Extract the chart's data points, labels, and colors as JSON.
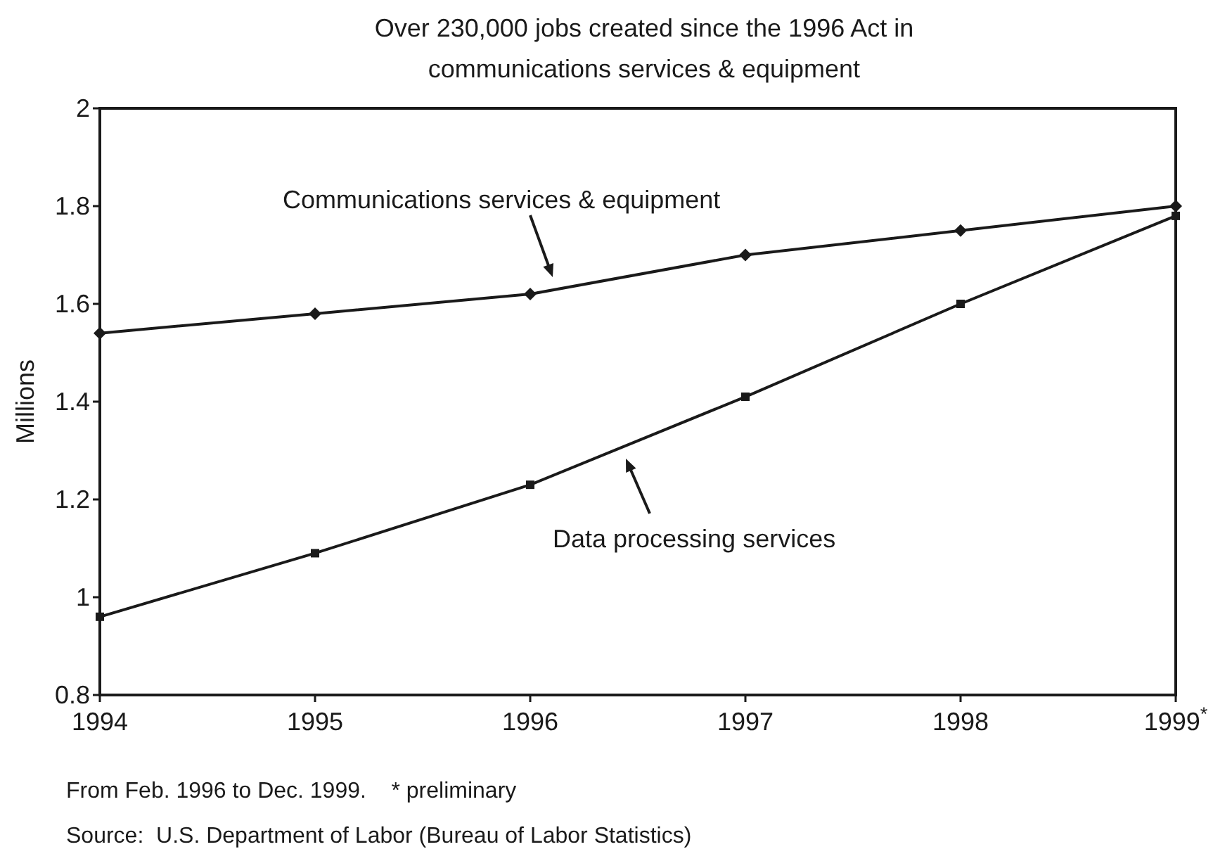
{
  "chart_data": {
    "type": "line",
    "title": "Over 230,000 jobs created since the 1996 Act in communications services & equipment",
    "ylabel": "Millions",
    "x": [
      1994,
      1995,
      1996,
      1997,
      1998,
      1999
    ],
    "series": [
      {
        "name": "Communications services & equipment",
        "color": "#1a1a1a",
        "marker": "diamond",
        "values": [
          1.54,
          1.58,
          1.62,
          1.7,
          1.75,
          1.8
        ]
      },
      {
        "name": "Data processing services",
        "color": "#1a1a1a",
        "marker": "square",
        "values": [
          0.96,
          1.09,
          1.23,
          1.41,
          1.6,
          1.78
        ]
      }
    ],
    "xlim": [
      1994,
      1999
    ],
    "xticks": [
      1994,
      1995,
      1996,
      1997,
      1998,
      {
        "value": 1999,
        "label": "1999$^{*}$"
      }
    ],
    "ylim": [
      0.8,
      2
    ],
    "yticks": [
      0.8,
      1,
      1.2,
      1.4,
      1.6,
      1.8,
      2
    ],
    "grid": false,
    "line_style": "solid",
    "annotations": [
      "From Feb. 1996 to Dec. 1999.    * preliminary",
      "Source:  U.S. Department of Labor (Bureau of Labor Statistics)"
    ]
  }
}
